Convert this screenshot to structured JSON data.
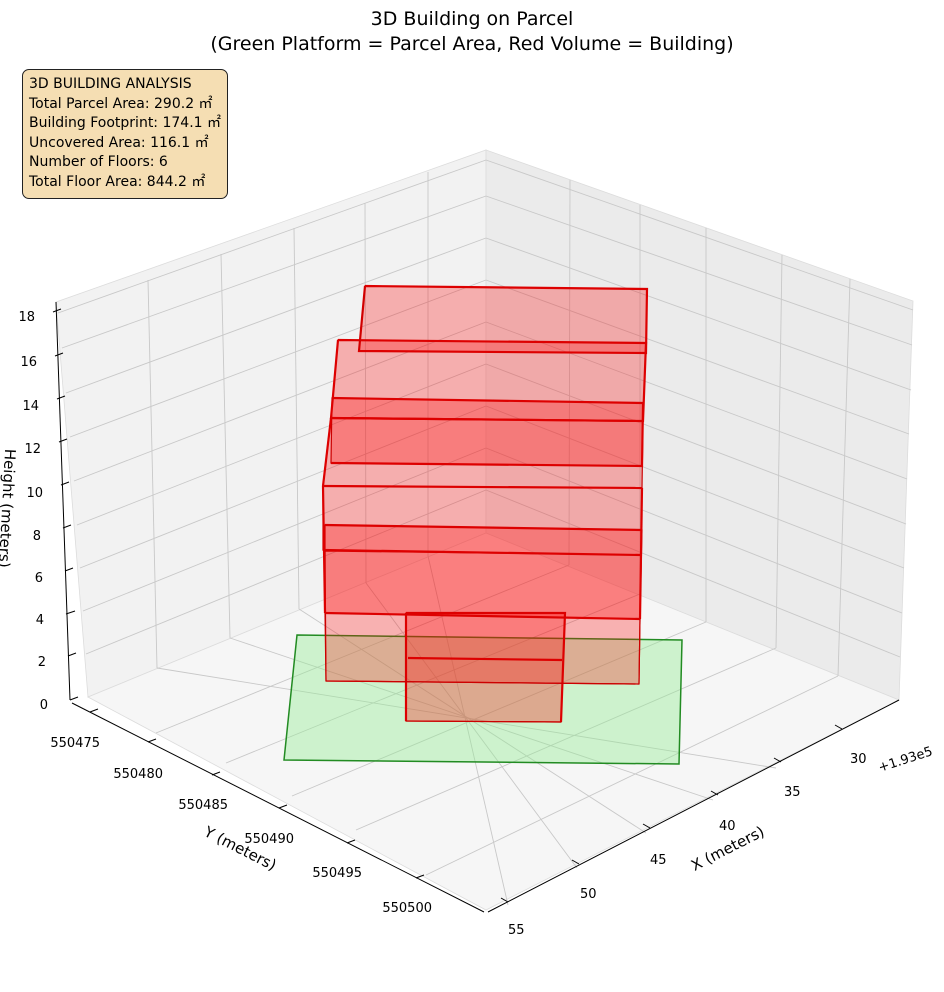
{
  "chart_data": {
    "type": "3d-polygons",
    "title_line1": "3D Building on Parcel",
    "title_line2": "(Green Platform = Parcel Area, Red Volume = Building)",
    "xlabel": "X (meters)",
    "ylabel": "Y (meters)",
    "zlabel": "Height (meters)",
    "x_offset_label": "+1.93e5",
    "x_ticks": [
      "30",
      "35",
      "40",
      "45",
      "50",
      "55"
    ],
    "y_ticks": [
      "550475",
      "550480",
      "550485",
      "550490",
      "550495",
      "550500"
    ],
    "z_ticks": [
      "0",
      "2",
      "4",
      "6",
      "8",
      "10",
      "12",
      "14",
      "16",
      "18"
    ],
    "parcel_color": "#90ee90",
    "parcel_edge": "#228b22",
    "building_color": "#ff0000",
    "building_edge": "#cc0000"
  },
  "info_box": {
    "heading": "3D BUILDING ANALYSIS",
    "total_parcel_area": "Total Parcel Area: 290.2 ㎡",
    "building_footprint": "Building Footprint: 174.1 ㎡",
    "uncovered_area": "Uncovered Area: 116.1 ㎡",
    "floors": "Number of Floors: 6",
    "total_floor_area": "Total Floor Area: 844.2 ㎡"
  }
}
